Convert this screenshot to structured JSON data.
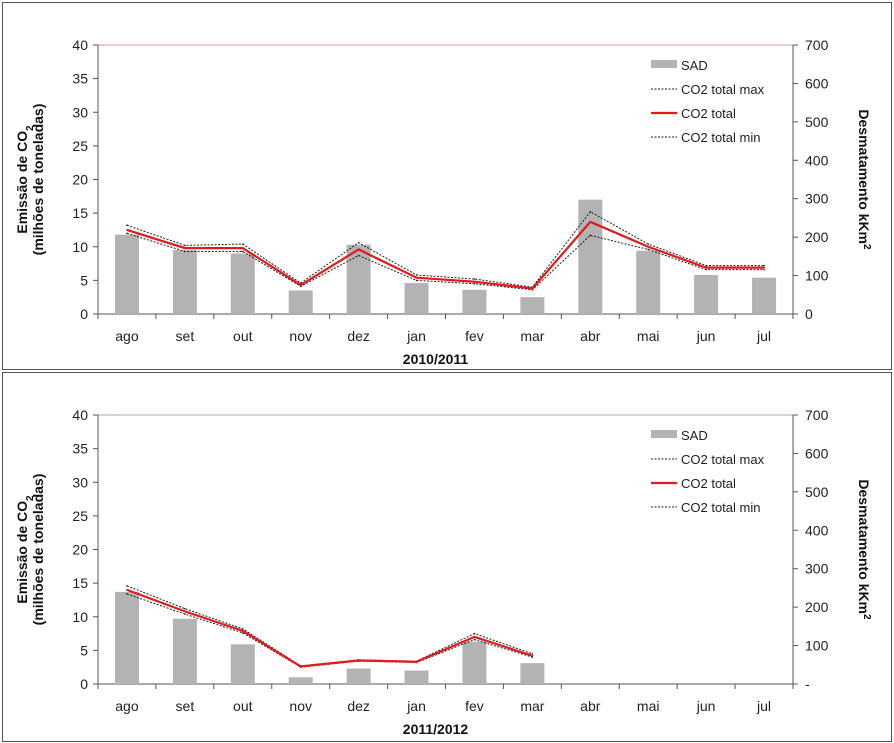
{
  "charts": [
    {
      "id": "c1",
      "xlabel": "2010/2011",
      "ylabel_left_1": "Emissão de CO",
      "ylabel_left_sub": "2",
      "ylabel_left_2": "(milhões de toneladas)",
      "ylabel_right": "Desmatamento kKm",
      "ylabel_right_sup": "2",
      "legend": [
        "SAD",
        "CO2 total max",
        "CO2 total",
        "CO2 total min"
      ]
    },
    {
      "id": "c2",
      "xlabel": "2011/2012",
      "ylabel_left_1": "Emissão de CO",
      "ylabel_left_sub": "2",
      "ylabel_left_2": "(milhões de toneladas)",
      "ylabel_right": "Desmatamento kKm",
      "ylabel_right_sup": "2",
      "legend": [
        "SAD",
        "CO2 total max",
        "CO2 total",
        "CO2 total min"
      ]
    }
  ],
  "colors": {
    "bar": "#b3b3b3",
    "total": "#e31a1c",
    "bounds": "#222222",
    "axis": "#555555"
  },
  "chart_data": [
    {
      "type": "bar",
      "xlabel": "2010/2011",
      "ylabel": "Emissão de CO2 (milhões de toneladas)",
      "ylabel_right": "Desmatamento kKm2",
      "categories": [
        "ago",
        "set",
        "out",
        "nov",
        "dez",
        "jan",
        "fev",
        "mar",
        "abr",
        "mai",
        "jun",
        "jul"
      ],
      "ylim": [
        0,
        40
      ],
      "yticks": [
        0,
        5,
        10,
        15,
        20,
        25,
        30,
        35,
        40
      ],
      "ylim_right": [
        0,
        700
      ],
      "yticks_right": [
        "0",
        "100",
        "200",
        "300",
        "400",
        "500",
        "600",
        "700"
      ],
      "series": [
        {
          "name": "SAD",
          "type": "bar",
          "axis": "left",
          "values": [
            11.8,
            9.5,
            9.0,
            3.5,
            10.3,
            4.6,
            3.6,
            2.5,
            17.0,
            9.4,
            5.8,
            5.4
          ]
        },
        {
          "name": "CO2 total max",
          "type": "line",
          "style": "dotted",
          "axis": "left",
          "values": [
            13.2,
            10.2,
            10.4,
            4.6,
            10.6,
            5.8,
            5.2,
            4.0,
            15.2,
            10.4,
            7.2,
            7.2
          ]
        },
        {
          "name": "CO2 total",
          "type": "line",
          "style": "solid",
          "axis": "left",
          "values": [
            12.5,
            9.8,
            9.8,
            4.3,
            9.6,
            5.4,
            4.8,
            3.8,
            13.7,
            10.0,
            6.9,
            6.9
          ]
        },
        {
          "name": "CO2 total min",
          "type": "line",
          "style": "dotted",
          "axis": "left",
          "values": [
            12.0,
            9.3,
            9.3,
            4.1,
            8.7,
            5.0,
            4.5,
            3.6,
            11.7,
            9.6,
            6.6,
            6.6
          ]
        }
      ],
      "legend_position": "top-right",
      "grid": false
    },
    {
      "type": "bar",
      "xlabel": "2011/2012",
      "ylabel": "Emissão de CO2 (milhões de toneladas)",
      "ylabel_right": "Desmatamento kKm2",
      "categories": [
        "ago",
        "set",
        "out",
        "nov",
        "dez",
        "jan",
        "fev",
        "mar",
        "abr",
        "mai",
        "jun",
        "jul"
      ],
      "ylim": [
        0,
        40
      ],
      "yticks": [
        0,
        5,
        10,
        15,
        20,
        25,
        30,
        35,
        40
      ],
      "ylim_right": [
        0,
        700
      ],
      "yticks_right": [
        "-",
        "100",
        "200",
        "300",
        "400",
        "500",
        "600",
        "700"
      ],
      "series": [
        {
          "name": "SAD",
          "type": "bar",
          "axis": "left",
          "values": [
            13.7,
            9.7,
            5.9,
            1.0,
            2.3,
            2.0,
            6.3,
            3.1,
            null,
            null,
            null,
            null
          ]
        },
        {
          "name": "CO2 total max",
          "type": "line",
          "style": "dotted",
          "axis": "left",
          "values": [
            14.6,
            11.2,
            8.2,
            2.7,
            3.6,
            3.4,
            7.5,
            4.5,
            null,
            null,
            null,
            null
          ]
        },
        {
          "name": "CO2 total",
          "type": "line",
          "style": "solid",
          "axis": "left",
          "values": [
            14.0,
            10.8,
            7.9,
            2.6,
            3.5,
            3.3,
            7.0,
            4.2,
            null,
            null,
            null,
            null
          ]
        },
        {
          "name": "CO2 total min",
          "type": "line",
          "style": "dotted",
          "axis": "left",
          "values": [
            13.4,
            10.4,
            7.6,
            2.5,
            3.4,
            3.2,
            6.6,
            4.0,
            null,
            null,
            null,
            null
          ]
        }
      ],
      "legend_position": "top-right",
      "grid": false
    }
  ]
}
